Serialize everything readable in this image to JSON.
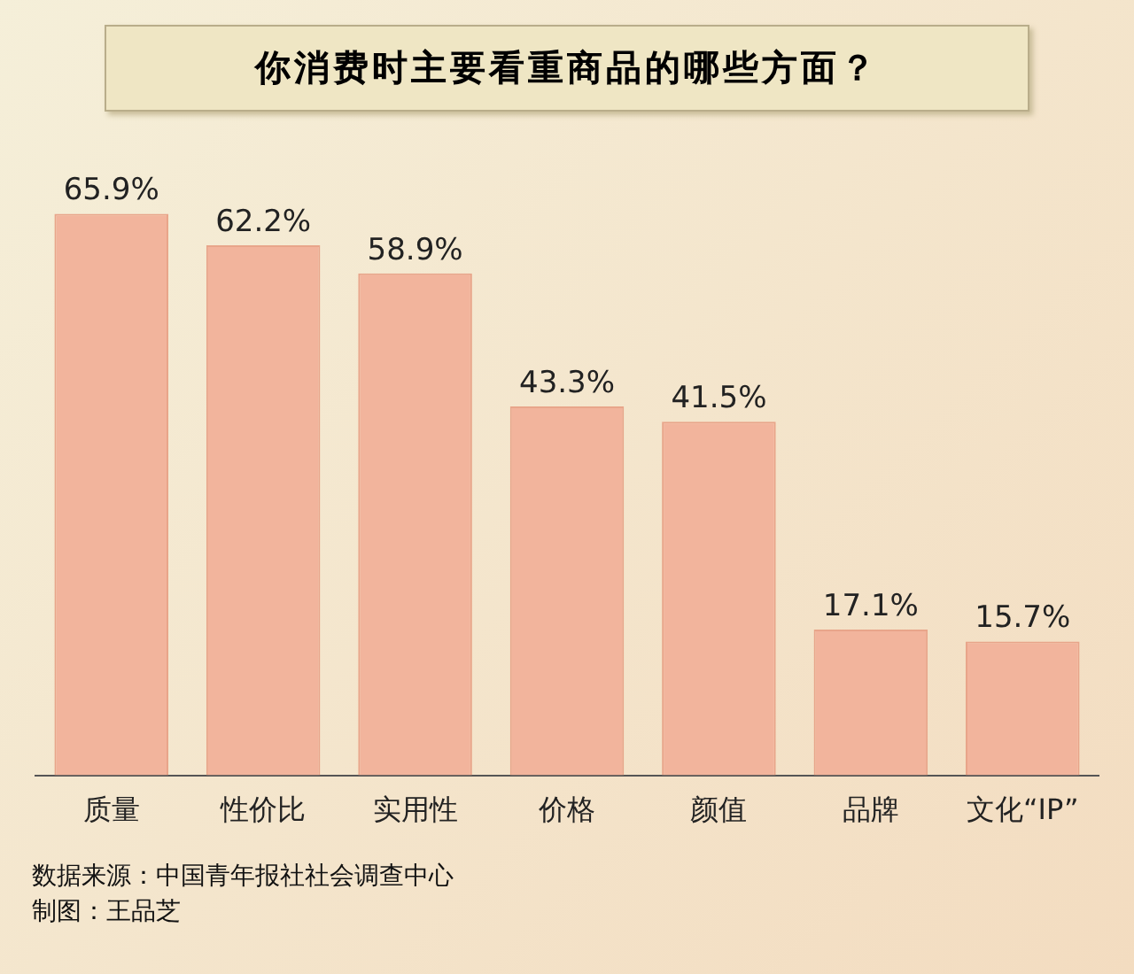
{
  "chart_data": {
    "type": "bar",
    "title": "你消费时主要看重商品的哪些方面？",
    "categories": [
      "质量",
      "性价比",
      "实用性",
      "价格",
      "颜值",
      "品牌",
      "文化“IP”"
    ],
    "values": [
      65.9,
      62.2,
      58.9,
      43.3,
      41.5,
      17.1,
      15.7
    ],
    "value_labels": [
      "65.9%",
      "62.2%",
      "58.9%",
      "43.3%",
      "41.5%",
      "17.1%",
      "15.7%"
    ],
    "color": "#f2b49c",
    "tick_labels": "x",
    "grid": false,
    "legend": false,
    "annotations": [
      "数据来源：中国青年报社社会调查中心",
      "制图：王品芝"
    ]
  }
}
